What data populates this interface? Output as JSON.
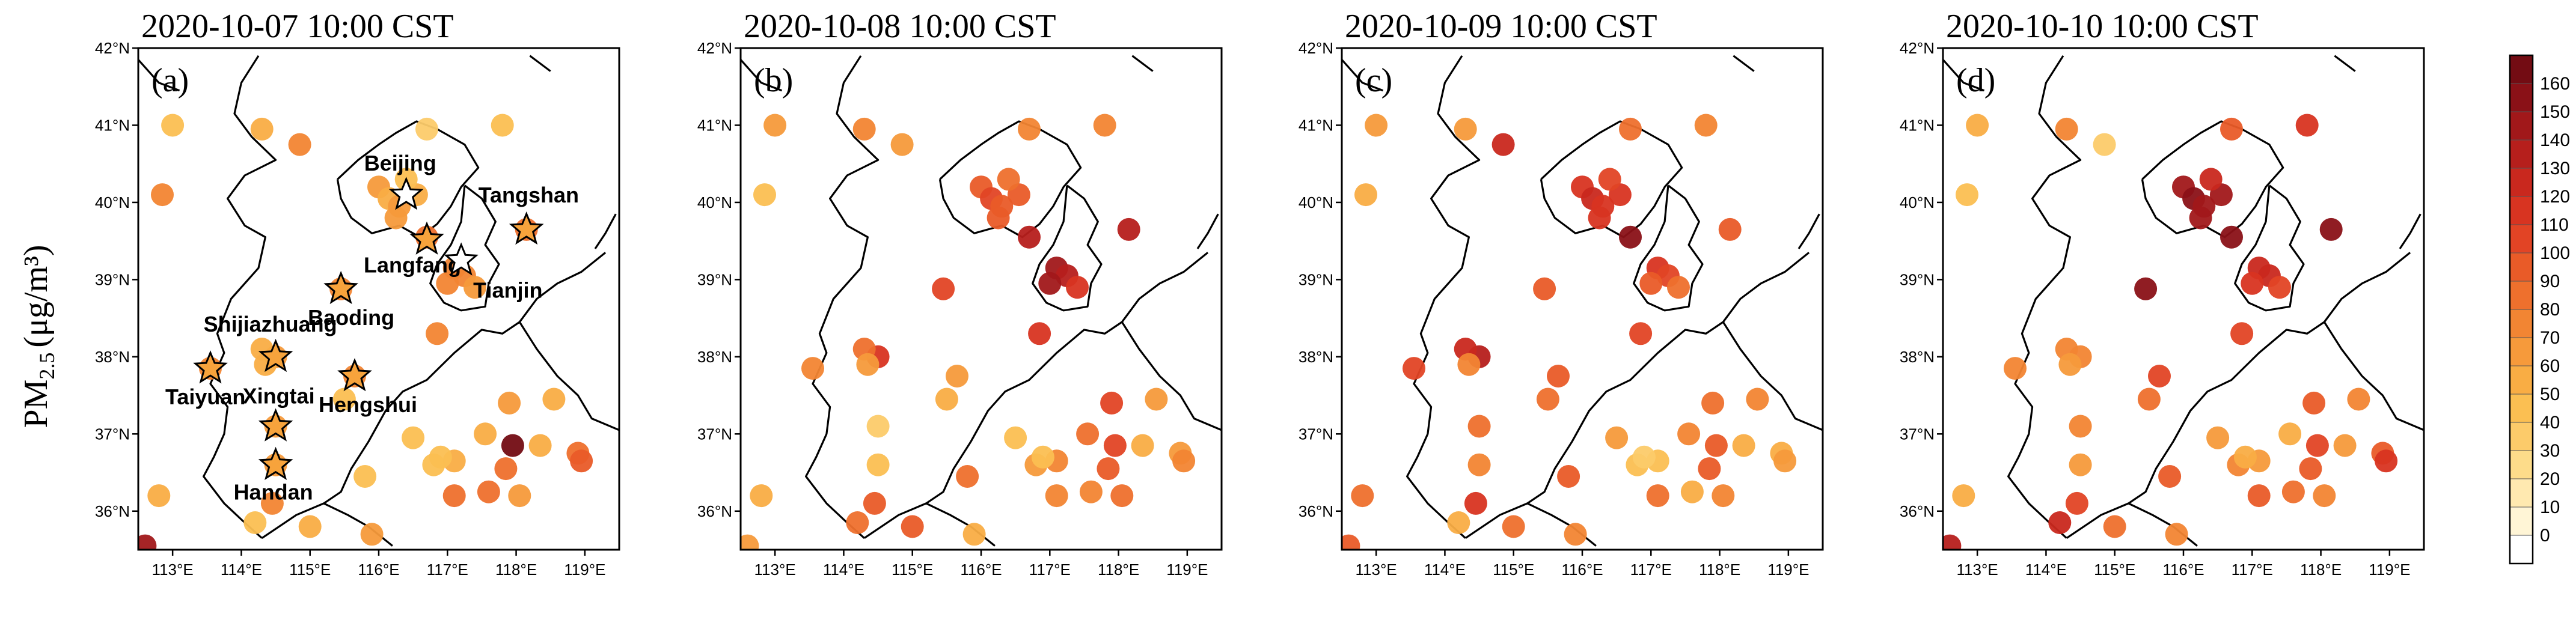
{
  "y_label": {
    "main": "PM",
    "sub": "2.5",
    "unit": "(μg/m³)"
  },
  "colorbar": {
    "ticks": [
      0,
      10,
      20,
      30,
      40,
      50,
      60,
      70,
      80,
      90,
      100,
      110,
      120,
      130,
      140,
      150,
      160
    ],
    "colors": [
      "#ffffff",
      "#fff5d6",
      "#ffe9b0",
      "#fddc8a",
      "#fccb6a",
      "#fbbf52",
      "#f9ad44",
      "#f69a3b",
      "#f28533",
      "#ee702d",
      "#e95b28",
      "#e24425",
      "#d83421",
      "#c9281e",
      "#b61f1c",
      "#a1181a",
      "#8a1117",
      "#730c13"
    ]
  },
  "axes": {
    "lon_ticks": [
      "113°E",
      "114°E",
      "115°E",
      "116°E",
      "117°E",
      "118°E",
      "119°E"
    ],
    "lat_ticks": [
      "42°N",
      "41°N",
      "40°N",
      "39°N",
      "38°N",
      "37°N",
      "36°N"
    ]
  },
  "panels": [
    {
      "id": "a",
      "letter": "(a)",
      "title": "2020-10-07 10:00 CST"
    },
    {
      "id": "b",
      "letter": "(b)",
      "title": "2020-10-08 10:00 CST"
    },
    {
      "id": "c",
      "letter": "(c)",
      "title": "2020-10-09 10:00 CST"
    },
    {
      "id": "d",
      "letter": "(d)",
      "title": "2020-10-10 10:00 CST"
    }
  ],
  "cities": [
    {
      "name": "Beijing",
      "lon": 116.4,
      "lat": 40.1,
      "hollow": true
    },
    {
      "name": "Tangshan",
      "lon": 118.15,
      "lat": 39.65,
      "hollow": false
    },
    {
      "name": "Langfang",
      "lon": 116.7,
      "lat": 39.52,
      "hollow": false
    },
    {
      "name": "Tianjin",
      "lon": 117.2,
      "lat": 39.25,
      "hollow": true
    },
    {
      "name": "Baoding",
      "lon": 115.45,
      "lat": 38.88,
      "hollow": false
    },
    {
      "name": "Shijiazhuang",
      "lon": 114.5,
      "lat": 38.0,
      "hollow": false
    },
    {
      "name": "Taiyuan",
      "lon": 113.55,
      "lat": 37.85,
      "hollow": false
    },
    {
      "name": "Hengshui",
      "lon": 115.65,
      "lat": 37.75,
      "hollow": false
    },
    {
      "name": "Xingtai",
      "lon": 114.5,
      "lat": 37.1,
      "hollow": false
    },
    {
      "name": "Handan",
      "lon": 114.5,
      "lat": 36.6,
      "hollow": false
    }
  ],
  "stations": [
    {
      "lon": 113.0,
      "lat": 41.0,
      "v": [
        40,
        60,
        60,
        55
      ]
    },
    {
      "lon": 112.85,
      "lat": 40.1,
      "v": [
        75,
        45,
        55,
        40
      ]
    },
    {
      "lon": 114.3,
      "lat": 40.95,
      "v": [
        55,
        70,
        65,
        75
      ]
    },
    {
      "lon": 114.85,
      "lat": 40.75,
      "v": [
        70,
        65,
        120,
        30
      ]
    },
    {
      "lon": 116.7,
      "lat": 40.95,
      "v": [
        30,
        70,
        80,
        90
      ]
    },
    {
      "lon": 117.8,
      "lat": 41.0,
      "v": [
        40,
        75,
        70,
        110
      ]
    },
    {
      "lon": 116.0,
      "lat": 40.2,
      "v": [
        60,
        90,
        110,
        140
      ]
    },
    {
      "lon": 116.15,
      "lat": 40.05,
      "v": [
        55,
        100,
        120,
        150
      ]
    },
    {
      "lon": 116.3,
      "lat": 39.95,
      "v": [
        60,
        95,
        115,
        145
      ]
    },
    {
      "lon": 116.55,
      "lat": 40.1,
      "v": [
        55,
        95,
        110,
        140
      ]
    },
    {
      "lon": 116.4,
      "lat": 40.3,
      "v": [
        45,
        85,
        100,
        125
      ]
    },
    {
      "lon": 116.25,
      "lat": 39.8,
      "v": [
        60,
        95,
        110,
        140
      ]
    },
    {
      "lon": 116.7,
      "lat": 39.55,
      "v": [
        80,
        130,
        150,
        150
      ]
    },
    {
      "lon": 118.15,
      "lat": 39.65,
      "v": [
        85,
        130,
        90,
        150
      ]
    },
    {
      "lon": 117.1,
      "lat": 39.15,
      "v": [
        75,
        140,
        110,
        120
      ]
    },
    {
      "lon": 117.25,
      "lat": 39.05,
      "v": [
        70,
        130,
        100,
        120
      ]
    },
    {
      "lon": 117.0,
      "lat": 38.95,
      "v": [
        75,
        140,
        95,
        110
      ]
    },
    {
      "lon": 117.4,
      "lat": 38.9,
      "v": [
        65,
        110,
        80,
        100
      ]
    },
    {
      "lon": 116.85,
      "lat": 38.3,
      "v": [
        75,
        115,
        100,
        100
      ]
    },
    {
      "lon": 115.45,
      "lat": 38.88,
      "v": [
        75,
        100,
        95,
        150
      ]
    },
    {
      "lon": 114.5,
      "lat": 38.0,
      "v": [
        65,
        110,
        130,
        75
      ]
    },
    {
      "lon": 114.3,
      "lat": 38.1,
      "v": [
        55,
        80,
        120,
        70
      ]
    },
    {
      "lon": 113.55,
      "lat": 37.85,
      "v": [
        70,
        70,
        100,
        75
      ]
    },
    {
      "lon": 114.35,
      "lat": 37.9,
      "v": [
        55,
        60,
        70,
        65
      ]
    },
    {
      "lon": 115.65,
      "lat": 37.75,
      "v": [
        70,
        65,
        90,
        100
      ]
    },
    {
      "lon": 115.5,
      "lat": 37.45,
      "v": [
        45,
        55,
        85,
        85
      ]
    },
    {
      "lon": 114.5,
      "lat": 37.1,
      "v": [
        60,
        35,
        80,
        75
      ]
    },
    {
      "lon": 114.5,
      "lat": 36.6,
      "v": [
        65,
        45,
        75,
        65
      ]
    },
    {
      "lon": 114.45,
      "lat": 36.1,
      "v": [
        75,
        90,
        110,
        100
      ]
    },
    {
      "lon": 114.2,
      "lat": 35.85,
      "v": [
        40,
        80,
        55,
        120
      ]
    },
    {
      "lon": 115.0,
      "lat": 35.8,
      "v": [
        55,
        90,
        80,
        80
      ]
    },
    {
      "lon": 112.8,
      "lat": 36.2,
      "v": [
        55,
        50,
        80,
        55
      ]
    },
    {
      "lon": 112.6,
      "lat": 35.55,
      "v": [
        140,
        60,
        90,
        130
      ]
    },
    {
      "lon": 115.8,
      "lat": 36.45,
      "v": [
        45,
        80,
        90,
        90
      ]
    },
    {
      "lon": 117.1,
      "lat": 36.2,
      "v": [
        85,
        70,
        80,
        90
      ]
    },
    {
      "lon": 116.8,
      "lat": 36.6,
      "v": [
        40,
        60,
        40,
        75
      ]
    },
    {
      "lon": 117.1,
      "lat": 36.65,
      "v": [
        50,
        70,
        40,
        60
      ]
    },
    {
      "lon": 117.6,
      "lat": 36.25,
      "v": [
        85,
        75,
        55,
        85
      ]
    },
    {
      "lon": 117.85,
      "lat": 36.55,
      "v": [
        80,
        95,
        95,
        95
      ]
    },
    {
      "lon": 117.95,
      "lat": 36.85,
      "v": [
        160,
        100,
        95,
        105
      ]
    },
    {
      "lon": 117.9,
      "lat": 37.4,
      "v": [
        65,
        100,
        80,
        90
      ]
    },
    {
      "lon": 118.55,
      "lat": 37.45,
      "v": [
        55,
        60,
        75,
        70
      ]
    },
    {
      "lon": 118.35,
      "lat": 36.85,
      "v": [
        55,
        55,
        55,
        60
      ]
    },
    {
      "lon": 118.05,
      "lat": 36.2,
      "v": [
        65,
        85,
        70,
        70
      ]
    },
    {
      "lon": 118.9,
      "lat": 36.75,
      "v": [
        85,
        60,
        55,
        90
      ]
    },
    {
      "lon": 118.95,
      "lat": 36.65,
      "v": [
        90,
        70,
        65,
        110
      ]
    },
    {
      "lon": 116.9,
      "lat": 36.7,
      "v": [
        40,
        45,
        35,
        55
      ]
    },
    {
      "lon": 117.55,
      "lat": 37.0,
      "v": [
        55,
        80,
        75,
        55
      ]
    },
    {
      "lon": 115.9,
      "lat": 35.7,
      "v": [
        60,
        55,
        70,
        70
      ]
    },
    {
      "lon": 116.5,
      "lat": 36.95,
      "v": [
        45,
        40,
        65,
        60
      ]
    }
  ]
}
